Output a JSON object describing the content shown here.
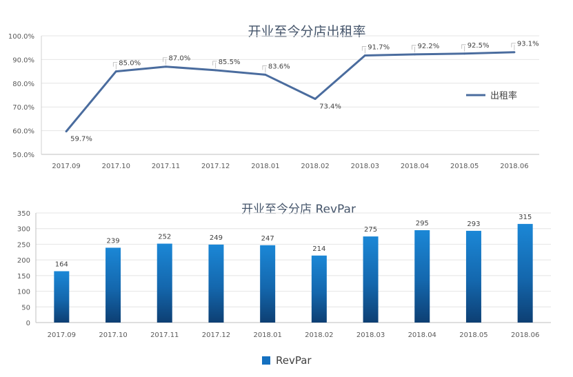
{
  "chart_data": [
    {
      "type": "line",
      "title": "开业至今分店出租率",
      "categories": [
        "2017.09",
        "2017.10",
        "2017.11",
        "2017.12",
        "2018.01",
        "2018.02",
        "2018.03",
        "2018.04",
        "2018.05",
        "2018.06"
      ],
      "series": [
        {
          "name": "出租率",
          "values": [
            59.7,
            85.0,
            87.0,
            85.5,
            83.6,
            73.4,
            91.7,
            92.2,
            92.5,
            93.1
          ],
          "labels": [
            "59.7%",
            "85.0%",
            "87.0%",
            "85.5%",
            "83.6%",
            "73.4%",
            "91.7%",
            "92.2%",
            "92.5%",
            "93.1%"
          ]
        }
      ],
      "yticks": [
        "50.0%",
        "60.0%",
        "70.0%",
        "80.0%",
        "90.0%",
        "100.0%"
      ],
      "ylim": [
        50,
        100
      ],
      "grid": true,
      "legend": "right",
      "color": "#4a6c9e"
    },
    {
      "type": "bar",
      "title": "开业至今分店 RevPar",
      "categories": [
        "2017.09",
        "2017.10",
        "2017.11",
        "2017.12",
        "2018.01",
        "2018.02",
        "2018.03",
        "2018.04",
        "2018.05",
        "2018.06"
      ],
      "series": [
        {
          "name": "RevPar",
          "values": [
            164,
            239,
            252,
            249,
            247,
            214,
            275,
            295,
            293,
            315
          ]
        }
      ],
      "yticks": [
        "0",
        "50",
        "100",
        "150",
        "200",
        "250",
        "300",
        "350"
      ],
      "ylim": [
        0,
        350
      ],
      "grid": true,
      "legend": "bottom",
      "color_top": "#1b87d6",
      "color_bottom": "#0d3f73"
    }
  ]
}
